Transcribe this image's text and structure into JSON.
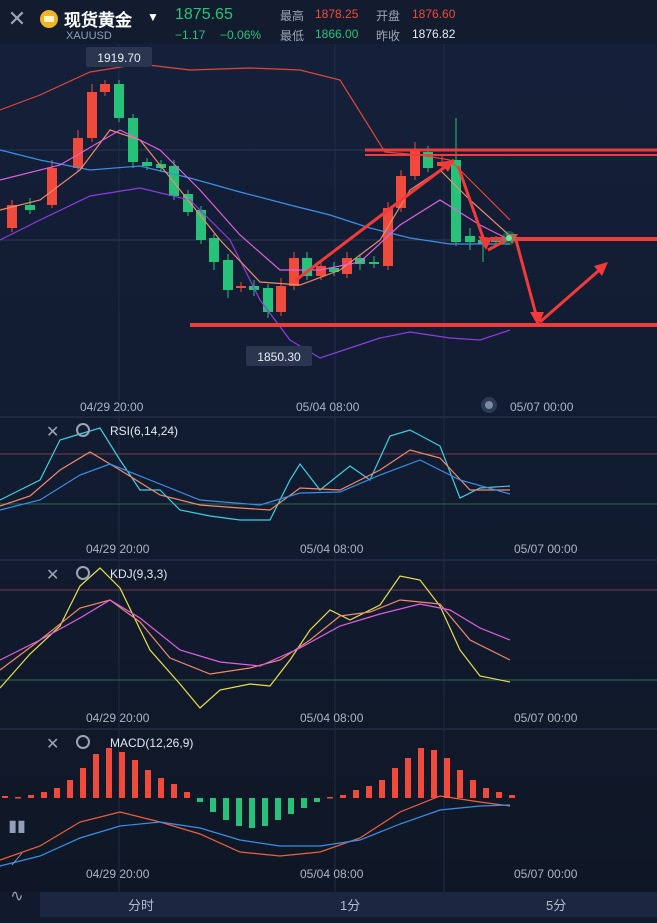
{
  "header": {
    "title": "现货黄金",
    "symbol": "XAUUSD",
    "price": "1875.65",
    "change": "−1.17",
    "change_pct": "−0.06%",
    "stats": {
      "high_label": "最高",
      "high": "1878.25",
      "open_label": "开盘",
      "open": "1876.60",
      "low_label": "最低",
      "low": "1866.00",
      "prev_label": "昨收",
      "prev": "1876.82"
    }
  },
  "colors": {
    "up": "#f04a3c",
    "down": "#27c27a",
    "background": "#111a2c"
  },
  "main_chart": {
    "high_marker": "1919.70",
    "low_marker": "1850.30",
    "time_labels": [
      "04/29 20:00",
      "05/04 08:00",
      "05/07 00:00"
    ]
  },
  "panels": {
    "rsi": {
      "label": "RSI(6,14,24)",
      "time_labels": [
        "04/29 20:00",
        "05/04 08:00",
        "05/07 00:00"
      ]
    },
    "kdj": {
      "label": "KDJ(9,3,3)",
      "time_labels": [
        "04/29 20:00",
        "05/04 08:00",
        "05/07 00:00"
      ]
    },
    "macd": {
      "label": "MACD(12,26,9)",
      "time_labels": [
        "04/29 20:00",
        "05/04 08:00",
        "05/07 00:00"
      ]
    }
  },
  "bottom_tabs": [
    "分时",
    "1分",
    "5分"
  ]
}
